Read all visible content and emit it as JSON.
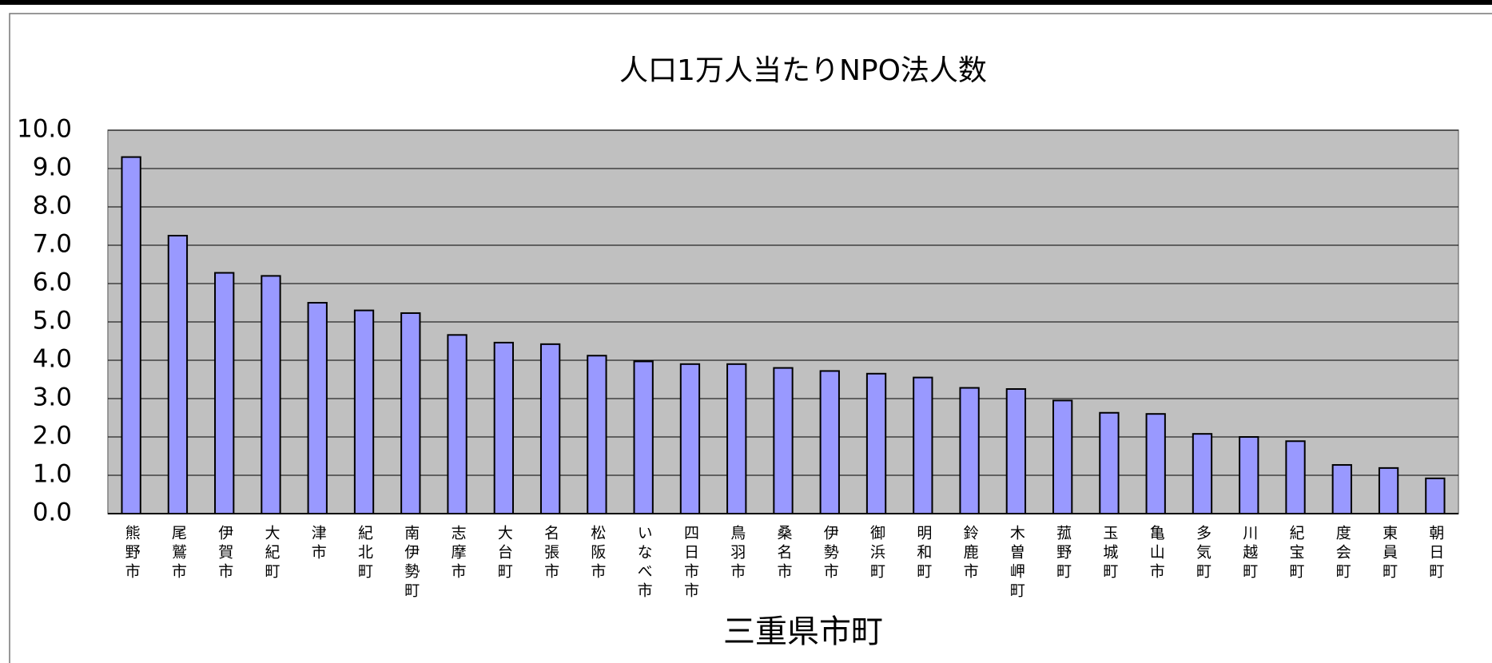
{
  "chart_data": {
    "type": "bar",
    "title": "人口1万人当たりNPO法人数",
    "x_label": "三重県市町",
    "categories": [
      "熊野市",
      "尾鷲市",
      "伊賀市",
      "大紀町",
      "津市",
      "紀北町",
      "南伊勢町",
      "志摩市",
      "大台町",
      "名張市",
      "松阪市",
      "いなべ市",
      "四日市市",
      "鳥羽市",
      "桑名市",
      "伊勢市",
      "御浜町",
      "明和町",
      "鈴鹿市",
      "木曽岬町",
      "菰野町",
      "玉城町",
      "亀山市",
      "多気町",
      "川越町",
      "紀宝町",
      "度会町",
      "東員町",
      "朝日町"
    ],
    "values": [
      9.3,
      7.25,
      6.28,
      6.2,
      5.5,
      5.3,
      5.23,
      4.66,
      4.46,
      4.42,
      4.12,
      3.97,
      3.9,
      3.9,
      3.8,
      3.72,
      3.65,
      3.55,
      3.28,
      3.25,
      2.95,
      2.63,
      2.6,
      2.08,
      2.0,
      1.89,
      1.27,
      1.19,
      0.92
    ],
    "color": "#9999ff",
    "ylim": [
      0,
      10
    ],
    "yticks": [
      {
        "value": 0,
        "label": "0.0"
      },
      {
        "value": 1,
        "label": "1.0"
      },
      {
        "value": 2,
        "label": "2.0"
      },
      {
        "value": 3,
        "label": "3.0"
      },
      {
        "value": 4,
        "label": "4.0"
      },
      {
        "value": 5,
        "label": "5.0"
      },
      {
        "value": 6,
        "label": "6.0"
      },
      {
        "value": 7,
        "label": "7.0"
      },
      {
        "value": 8,
        "label": "8.0"
      },
      {
        "value": 9,
        "label": "9.0"
      },
      {
        "value": 10,
        "label": "10.0"
      }
    ],
    "grid": true
  }
}
